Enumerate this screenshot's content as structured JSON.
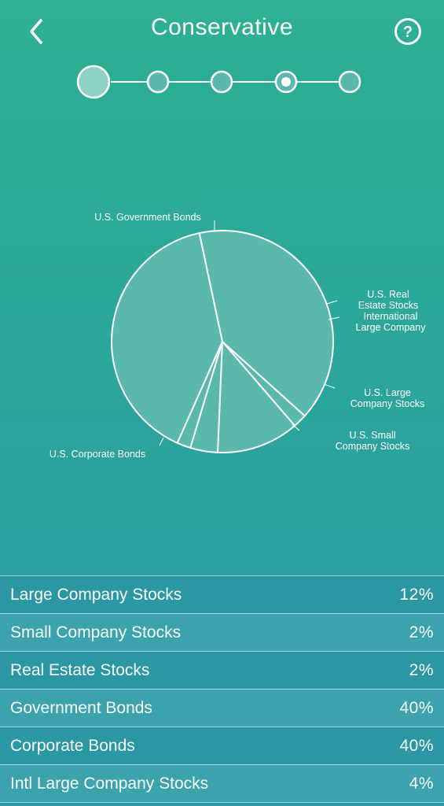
{
  "header": {
    "title": "Conservative",
    "back_icon": "chevron-left-icon",
    "help_icon": "question-circle-icon"
  },
  "steps": {
    "count": 5,
    "current": 4
  },
  "chart_data": {
    "type": "pie",
    "title": "",
    "series": [
      {
        "label": "U.S. Government Bonds",
        "value": 40
      },
      {
        "label": "U.S. Real Estate Stocks",
        "value": 2
      },
      {
        "label": "International Large Company",
        "value": 4
      },
      {
        "label": "U.S. Large Company Stocks",
        "value": 12
      },
      {
        "label": "U.S. Small Company Stocks",
        "value": 2
      },
      {
        "label": "U.S. Corporate Bonds",
        "value": 40
      }
    ],
    "labels": {
      "gov": "U.S. Government Bonds",
      "reit_1": "U.S. Real",
      "reit_2": "Estate Stocks",
      "intl_1": "International",
      "intl_2": "Large Company",
      "large_1": "U.S. Large",
      "large_2": "Company Stocks",
      "small_1": "U.S. Small",
      "small_2": "Company Stocks",
      "corp": "U.S. Corporate Bonds"
    },
    "slice_color": "#5bb8ac",
    "outline_color": "#ffffff"
  },
  "allocations": [
    {
      "name": "Large Company Stocks",
      "value": "12%"
    },
    {
      "name": "Small Company Stocks",
      "value": "2%"
    },
    {
      "name": "Real Estate Stocks",
      "value": "2%"
    },
    {
      "name": "Government Bonds",
      "value": "40%"
    },
    {
      "name": "Corporate Bonds",
      "value": "40%"
    },
    {
      "name": "Intl Large Company Stocks",
      "value": "4%"
    }
  ]
}
